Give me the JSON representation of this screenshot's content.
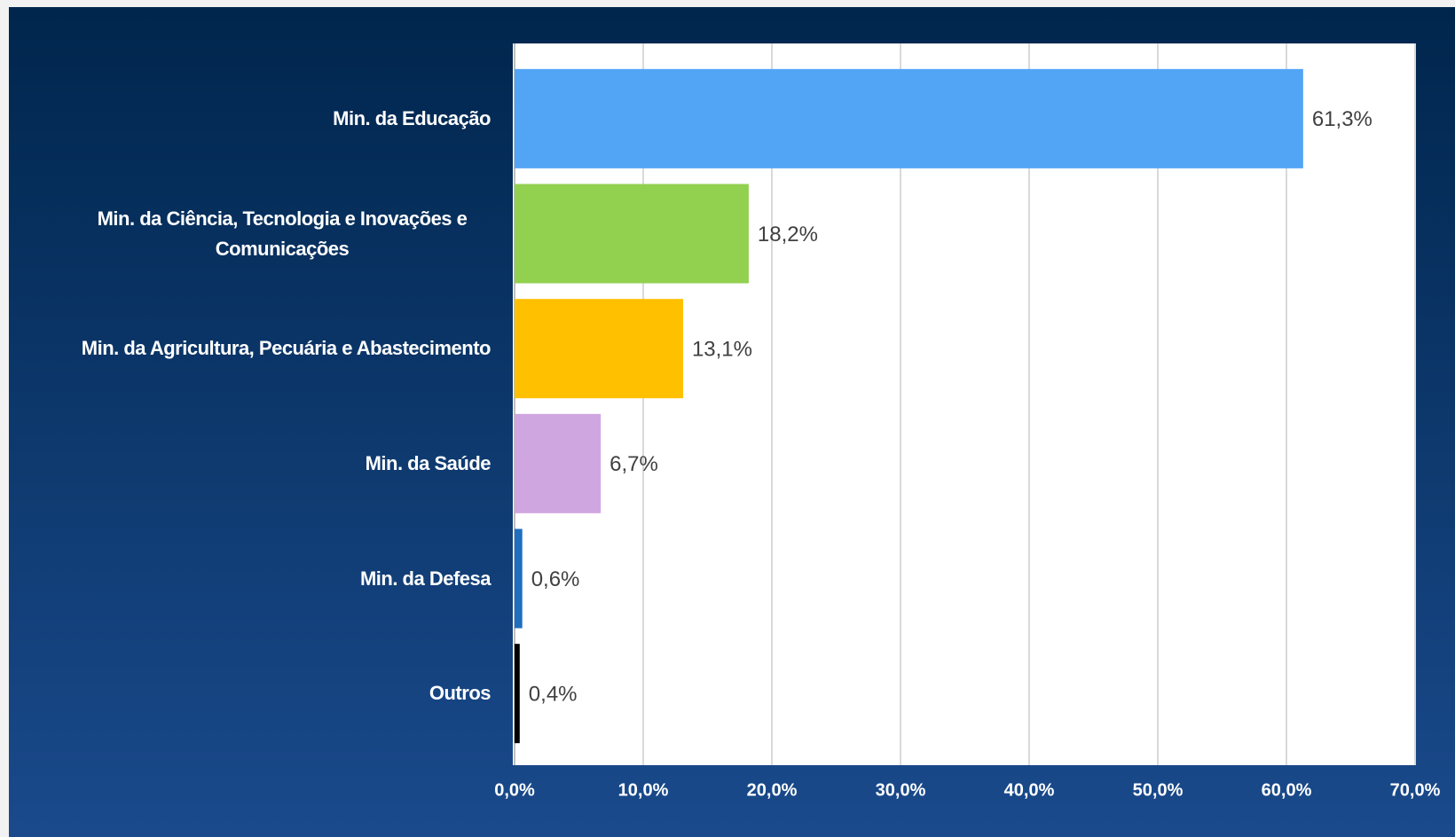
{
  "chart_data": {
    "type": "bar",
    "orientation": "horizontal",
    "categories": [
      "Min. da Educação",
      "Min. da Ciência, Tecnologia e Inovações e Comunicações",
      "Min. da Agricultura, Pecuária e Abastecimento",
      "Min. da Saúde",
      "Min. da Defesa",
      "Outros"
    ],
    "values": [
      61.3,
      18.2,
      13.1,
      6.7,
      0.6,
      0.4
    ],
    "value_labels": [
      "61,3%",
      "18,2%",
      "13,1%",
      "6,7%",
      "0,6%",
      "0,4%"
    ],
    "colors": [
      "#52a5f5",
      "#92d050",
      "#ffc000",
      "#d0a6e0",
      "#1f6fc0",
      "#000000"
    ],
    "xlim": [
      0,
      70
    ],
    "xticks": [
      {
        "value": 0,
        "label": "0,0%"
      },
      {
        "value": 10,
        "label": "10,0%"
      },
      {
        "value": 20,
        "label": "20,0%"
      },
      {
        "value": 30,
        "label": "30,0%"
      },
      {
        "value": 40,
        "label": "40,0%"
      },
      {
        "value": 50,
        "label": "50,0%"
      },
      {
        "value": 60,
        "label": "60,0%"
      },
      {
        "value": 70,
        "label": "70,0%"
      }
    ],
    "grid": true
  }
}
